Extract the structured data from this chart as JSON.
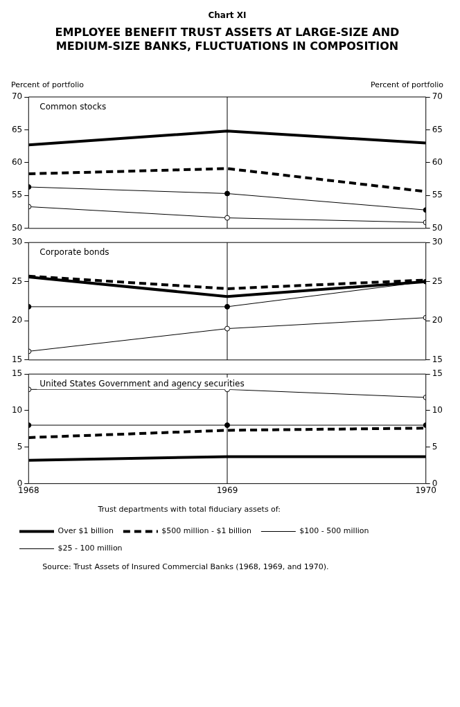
{
  "chart_data": [
    {
      "type": "line",
      "subtitle": "Chart XI",
      "title": "EMPLOYEE BENEFIT TRUST ASSETS AT LARGE-SIZE AND MEDIUM-SIZE BANKS, FLUCTUATIONS IN COMPOSITION",
      "ylabel": "Percent of portfolio",
      "y2label": "Percent of portfolio",
      "annotations": [
        "Common stocks"
      ],
      "x": [
        1968,
        1969,
        1970
      ],
      "xlim": [
        1968,
        1970
      ],
      "xticks": [
        1968,
        1969,
        1970
      ],
      "ylim": [
        50,
        70
      ],
      "yticks": [
        50,
        55,
        60,
        65,
        70
      ],
      "y2lim": [
        50,
        70
      ],
      "y2ticks": [
        50,
        55,
        60,
        65,
        70
      ],
      "tick_labels": "y",
      "ref_lines": [
        {
          "axis": "x",
          "value": 1969
        }
      ],
      "legend": false,
      "series": [
        {
          "color": "#000000",
          "line_style": "solid",
          "marker": "none",
          "values": [
            62.7,
            64.8,
            63.0
          ]
        },
        {
          "color": "#000000",
          "line_style": "dashed",
          "marker": "none",
          "values": [
            58.3,
            59.1,
            55.6
          ]
        },
        {
          "color": "#000000",
          "line_style": "solid",
          "marker": "circle",
          "values": [
            56.3,
            55.3,
            52.8
          ]
        },
        {
          "color": "#000000",
          "colors": [
            "#ffffff",
            "#ffffff",
            "#ffffff"
          ],
          "line_style": "solid",
          "marker": "circle",
          "values": [
            53.3,
            51.6,
            50.9
          ]
        }
      ]
    },
    {
      "type": "line",
      "annotations": [
        "Corporate bonds"
      ],
      "x": [
        1968,
        1969,
        1970
      ],
      "xlim": [
        1968,
        1970
      ],
      "xticks": [
        1968,
        1969,
        1970
      ],
      "ylim": [
        15,
        30
      ],
      "yticks": [
        15,
        20,
        25,
        30
      ],
      "y2lim": [
        15,
        30
      ],
      "y2ticks": [
        15,
        20,
        25,
        30
      ],
      "tick_labels": "y",
      "ref_lines": [
        {
          "axis": "x",
          "value": 1969
        }
      ],
      "legend": false,
      "series": [
        {
          "color": "#000000",
          "line_style": "solid",
          "marker": "none",
          "values": [
            25.6,
            23.1,
            25.0
          ]
        },
        {
          "color": "#000000",
          "line_style": "dashed",
          "marker": "none",
          "values": [
            25.7,
            24.1,
            25.2
          ]
        },
        {
          "color": "#000000",
          "line_style": "solid",
          "marker": "circle",
          "values": [
            21.8,
            21.8,
            25.0
          ]
        },
        {
          "color": "#000000",
          "colors": [
            "#ffffff",
            "#ffffff",
            "#ffffff"
          ],
          "line_style": "solid",
          "marker": "circle",
          "values": [
            16.1,
            19.0,
            20.4
          ]
        }
      ]
    },
    {
      "type": "line",
      "annotations": [
        "United States Government and agency securities",
        "Source: Trust Assets of Insured Commercial Banks (1968, 1969, and 1970)."
      ],
      "legend_title": "Trust departments with total fiduciary assets of:",
      "x": [
        1968,
        1969,
        1970
      ],
      "xlim": [
        1968,
        1970
      ],
      "xticks": [
        1968,
        1969,
        1970
      ],
      "ylim": [
        0,
        15
      ],
      "yticks": [
        0,
        5,
        10,
        15
      ],
      "y2lim": [
        0,
        15
      ],
      "y2ticks": [
        0,
        5,
        10,
        15
      ],
      "ref_lines": [
        {
          "axis": "x",
          "value": 1969
        }
      ],
      "legend": "bottom",
      "series": [
        {
          "name": "Over $1 billion",
          "color": "#000000",
          "line_style": "solid",
          "marker": "none",
          "values": [
            3.2,
            3.7,
            3.7
          ]
        },
        {
          "name": "$500 million - $1 billion",
          "color": "#000000",
          "line_style": "dashed",
          "marker": "none",
          "values": [
            6.3,
            7.3,
            7.6
          ]
        },
        {
          "name": "$100 - 500 million",
          "color": "#000000",
          "line_style": "solid",
          "marker": "circle",
          "values": [
            8.0,
            8.0,
            8.0
          ]
        },
        {
          "name": "$25 - 100 million",
          "color": "#000000",
          "colors": [
            "#ffffff",
            "#ffffff",
            "#ffffff"
          ],
          "line_style": "solid",
          "marker": "circle",
          "values": [
            12.9,
            12.9,
            11.8
          ]
        }
      ]
    }
  ]
}
